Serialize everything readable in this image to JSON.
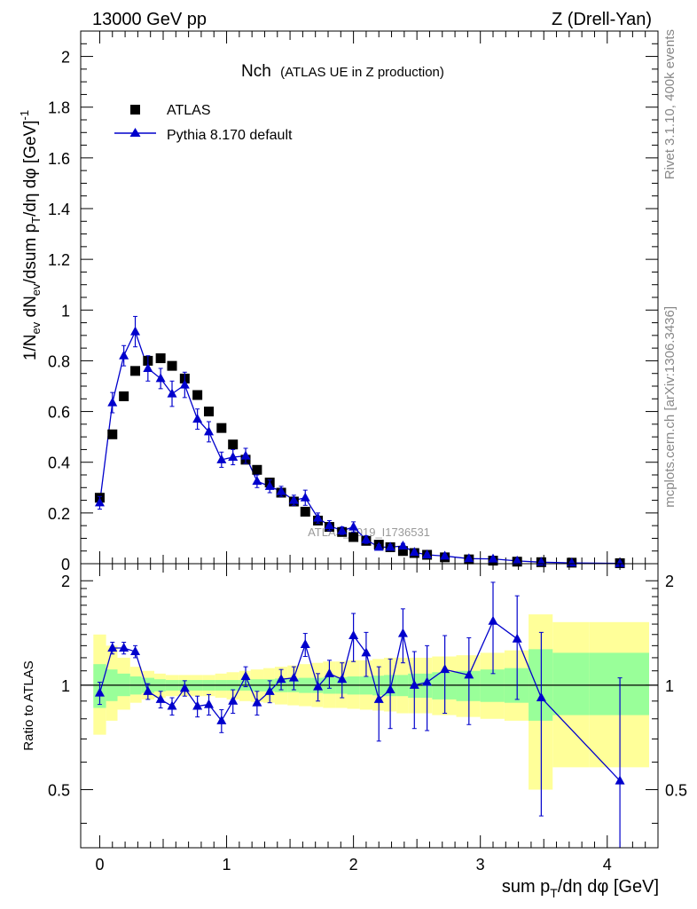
{
  "header": {
    "left": "13000 GeV pp",
    "right": "Z (Drell-Yan)"
  },
  "side_text": {
    "rivet": "Rivet 3.1.10,  400k events",
    "mcplots": "mcplots.cern.ch [arXiv:1306.3436]"
  },
  "watermark": "ATLAS_2019_I1736531",
  "chart_data": [
    {
      "type": "scatter",
      "panel": "main",
      "title_main": "Nch",
      "title_sub": "(ATLAS UE in Z production)",
      "ylabel": "1/N_ev dN_ev/dsum p_T/dη dφ [GeV]^-1",
      "xlim": [
        -0.15,
        4.4
      ],
      "ylim": [
        0,
        2.1
      ],
      "ytick_labels": [
        "0",
        "0.2",
        "0.4",
        "0.6",
        "0.8",
        "1",
        "1.2",
        "1.4",
        "1.6",
        "1.8",
        "2"
      ],
      "legend": {
        "position": "top-left",
        "entries": [
          "ATLAS",
          "Pythia 8.170 default"
        ]
      },
      "series": [
        {
          "name": "ATLAS",
          "marker": "square",
          "color": "#000000",
          "x": [
            0.0,
            0.1,
            0.19,
            0.28,
            0.38,
            0.48,
            0.57,
            0.67,
            0.77,
            0.86,
            0.96,
            1.05,
            1.15,
            1.24,
            1.34,
            1.43,
            1.53,
            1.62,
            1.72,
            1.81,
            1.91,
            2.0,
            2.1,
            2.2,
            2.29,
            2.39,
            2.48,
            2.58,
            2.72,
            2.91,
            3.1,
            3.29,
            3.48,
            3.72,
            4.1
          ],
          "y": [
            0.26,
            0.51,
            0.66,
            0.76,
            0.8,
            0.81,
            0.78,
            0.73,
            0.665,
            0.6,
            0.535,
            0.47,
            0.41,
            0.37,
            0.32,
            0.28,
            0.245,
            0.205,
            0.17,
            0.145,
            0.125,
            0.105,
            0.09,
            0.075,
            0.065,
            0.05,
            0.042,
            0.035,
            0.025,
            0.017,
            0.012,
            0.008,
            0.006,
            0.004,
            0.002
          ]
        },
        {
          "name": "Pythia 8.170 default",
          "marker": "triangle",
          "color": "#0000cc",
          "x": [
            0.0,
            0.1,
            0.19,
            0.28,
            0.38,
            0.48,
            0.57,
            0.67,
            0.77,
            0.86,
            0.96,
            1.05,
            1.15,
            1.24,
            1.34,
            1.43,
            1.53,
            1.62,
            1.72,
            1.81,
            1.91,
            2.0,
            2.1,
            2.2,
            2.29,
            2.39,
            2.48,
            2.58,
            2.72,
            2.91,
            3.1,
            3.29,
            3.48,
            3.72,
            4.1
          ],
          "y": [
            0.24,
            0.635,
            0.82,
            0.915,
            0.77,
            0.73,
            0.67,
            0.705,
            0.57,
            0.52,
            0.41,
            0.42,
            0.425,
            0.325,
            0.305,
            0.285,
            0.25,
            0.26,
            0.18,
            0.15,
            0.13,
            0.145,
            0.095,
            0.065,
            0.065,
            0.07,
            0.045,
            0.035,
            0.03,
            0.02,
            0.019,
            0.011,
            0.006,
            0.003,
            0.001
          ],
          "yerr": [
            0.025,
            0.04,
            0.04,
            0.06,
            0.05,
            0.04,
            0.05,
            0.05,
            0.04,
            0.04,
            0.03,
            0.03,
            0.03,
            0.025,
            0.025,
            0.02,
            0.02,
            0.03,
            0.02,
            0.02,
            0.015,
            0.02,
            0.015,
            0.01,
            0.01,
            0.01,
            0.008,
            0.007,
            0.006,
            0.005,
            0.005,
            0.004,
            0.003,
            0.002,
            0.001
          ]
        }
      ]
    },
    {
      "type": "scatter",
      "panel": "ratio",
      "xlabel": "sum p_T/dη dφ [GeV]",
      "ylabel": "Ratio to ATLAS",
      "xlim": [
        -0.15,
        4.4
      ],
      "ylim": [
        0.34,
        2.24
      ],
      "xtick_labels": [
        "0",
        "1",
        "2",
        "3",
        "4"
      ],
      "ytick_labels": [
        "0.5",
        "1",
        "2"
      ],
      "reference_line": 1,
      "bands": {
        "x_edges": [
          -0.05,
          0.05,
          0.14,
          0.24,
          0.33,
          0.43,
          0.52,
          0.62,
          0.72,
          0.81,
          0.91,
          1.0,
          1.1,
          1.19,
          1.29,
          1.38,
          1.48,
          1.57,
          1.67,
          1.76,
          1.86,
          1.95,
          2.05,
          2.15,
          2.24,
          2.34,
          2.43,
          2.53,
          2.62,
          2.81,
          3.0,
          3.19,
          3.38,
          3.57,
          3.86,
          4.33
        ],
        "green_lo": [
          0.86,
          0.9,
          0.93,
          0.94,
          0.95,
          0.96,
          0.965,
          0.965,
          0.965,
          0.965,
          0.965,
          0.965,
          0.965,
          0.96,
          0.96,
          0.955,
          0.955,
          0.95,
          0.95,
          0.945,
          0.945,
          0.94,
          0.94,
          0.935,
          0.93,
          0.93,
          0.92,
          0.92,
          0.91,
          0.9,
          0.895,
          0.89,
          0.79,
          0.82,
          0.82
        ],
        "green_hi": [
          1.15,
          1.11,
          1.08,
          1.06,
          1.05,
          1.04,
          1.035,
          1.035,
          1.035,
          1.035,
          1.035,
          1.035,
          1.035,
          1.04,
          1.04,
          1.045,
          1.045,
          1.05,
          1.05,
          1.055,
          1.055,
          1.06,
          1.06,
          1.065,
          1.07,
          1.07,
          1.08,
          1.08,
          1.09,
          1.1,
          1.11,
          1.12,
          1.27,
          1.24,
          1.24
        ],
        "yellow_lo": [
          0.72,
          0.79,
          0.85,
          0.89,
          0.91,
          0.92,
          0.93,
          0.93,
          0.93,
          0.93,
          0.92,
          0.91,
          0.9,
          0.895,
          0.89,
          0.88,
          0.875,
          0.87,
          0.865,
          0.86,
          0.86,
          0.855,
          0.85,
          0.845,
          0.84,
          0.83,
          0.83,
          0.83,
          0.82,
          0.81,
          0.8,
          0.79,
          0.5,
          0.58,
          0.58
        ],
        "yellow_hi": [
          1.4,
          1.3,
          1.2,
          1.13,
          1.1,
          1.08,
          1.07,
          1.07,
          1.07,
          1.07,
          1.08,
          1.09,
          1.1,
          1.11,
          1.12,
          1.13,
          1.14,
          1.15,
          1.16,
          1.17,
          1.17,
          1.18,
          1.18,
          1.19,
          1.2,
          1.2,
          1.2,
          1.2,
          1.21,
          1.22,
          1.24,
          1.26,
          1.6,
          1.52,
          1.52
        ]
      },
      "series": [
        {
          "name": "Pythia 8.170 default",
          "marker": "triangle",
          "color": "#0000cc",
          "x": [
            0.0,
            0.1,
            0.19,
            0.28,
            0.38,
            0.48,
            0.57,
            0.67,
            0.77,
            0.86,
            0.96,
            1.05,
            1.15,
            1.24,
            1.34,
            1.43,
            1.53,
            1.62,
            1.72,
            1.81,
            1.91,
            2.0,
            2.1,
            2.2,
            2.29,
            2.39,
            2.48,
            2.58,
            2.72,
            2.91,
            3.1,
            3.29,
            3.48,
            4.1
          ],
          "y": [
            0.95,
            1.28,
            1.28,
            1.25,
            0.96,
            0.91,
            0.87,
            0.98,
            0.87,
            0.88,
            0.79,
            0.9,
            1.06,
            0.89,
            0.96,
            1.04,
            1.05,
            1.31,
            0.99,
            1.08,
            1.04,
            1.39,
            1.24,
            0.91,
            0.97,
            1.41,
            1.0,
            1.02,
            1.11,
            1.07,
            1.53,
            1.36,
            0.92,
            0.53
          ],
          "yerr": [
            0.07,
            0.05,
            0.05,
            0.05,
            0.05,
            0.05,
            0.05,
            0.05,
            0.06,
            0.06,
            0.06,
            0.07,
            0.07,
            0.07,
            0.07,
            0.07,
            0.08,
            0.1,
            0.09,
            0.1,
            0.12,
            0.22,
            0.18,
            0.22,
            0.22,
            0.25,
            0.25,
            0.28,
            0.28,
            0.3,
            0.45,
            0.45,
            0.5,
            0.52
          ]
        }
      ]
    }
  ]
}
